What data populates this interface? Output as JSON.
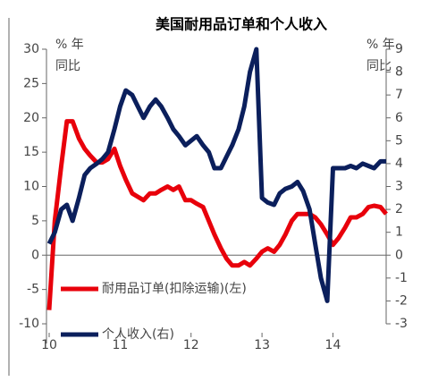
{
  "chart_data": {
    "type": "line",
    "title": "美国耐用品订单和个人收入",
    "y_unit": [
      "% 年",
      "同比"
    ],
    "y2_unit": [
      "% 年",
      "同比"
    ],
    "x": [
      10,
      10.08,
      10.17,
      10.25,
      10.33,
      10.42,
      10.5,
      10.58,
      10.67,
      10.75,
      10.83,
      10.92,
      11,
      11.08,
      11.17,
      11.25,
      11.33,
      11.42,
      11.5,
      11.58,
      11.67,
      11.75,
      11.83,
      11.92,
      12,
      12.08,
      12.17,
      12.25,
      12.33,
      12.42,
      12.5,
      12.58,
      12.67,
      12.75,
      12.83,
      12.92,
      13,
      13.08,
      13.17,
      13.25,
      13.33,
      13.42,
      13.5,
      13.58,
      13.67,
      13.75,
      13.83,
      13.92,
      14,
      14.08,
      14.17,
      14.25,
      14.33,
      14.42,
      14.5,
      14.58,
      14.67,
      14.75
    ],
    "xlim": [
      10,
      14.75
    ],
    "xticks": [
      10,
      11,
      12,
      13,
      14
    ],
    "ylim": [
      -10,
      30
    ],
    "yticks": [
      -10,
      -5,
      0,
      5,
      10,
      15,
      20,
      25,
      30
    ],
    "y2lim": [
      -3,
      9
    ],
    "y2ticks": [
      -3,
      -2,
      -1,
      0,
      1,
      2,
      3,
      4,
      5,
      6,
      7,
      8,
      9
    ],
    "legend": "lower-left",
    "series": [
      {
        "name": "耐用品订单(扣除运输)(左)",
        "color": "#e8000b",
        "values": [
          -8,
          5,
          13,
          19.5,
          19.5,
          17,
          15.5,
          14.5,
          13.5,
          13.5,
          14,
          15.5,
          13,
          11,
          9,
          8.5,
          8,
          9,
          9,
          9.5,
          10,
          9.5,
          10,
          8,
          8,
          7.5,
          7,
          5,
          3,
          1,
          -0.5,
          -1.5,
          -1.5,
          -1,
          -1.5,
          -0.5,
          0.5,
          1,
          0.5,
          1.5,
          3,
          5,
          6,
          6,
          6,
          5.5,
          4.5,
          3,
          1.5,
          2.5,
          4,
          5.5,
          5.5,
          6,
          7,
          7.2,
          7,
          6
        ]
      },
      {
        "name": "个人收入(右)",
        "color": "#0b1f5c",
        "axis": "y2",
        "values": [
          0.5,
          1,
          2,
          2.2,
          1.5,
          2.5,
          3.5,
          3.8,
          4,
          4.2,
          4.5,
          5.5,
          6.5,
          7.2,
          7,
          6.5,
          6,
          6.5,
          6.8,
          6.5,
          6,
          5.5,
          5.2,
          4.8,
          5,
          5.2,
          4.8,
          4.5,
          3.8,
          3.8,
          4.3,
          4.8,
          5.5,
          6.5,
          8,
          9,
          2.5,
          2.3,
          2.2,
          2.7,
          2.9,
          3,
          3.2,
          2.8,
          2,
          0.5,
          -1,
          -2,
          3.8,
          3.8,
          3.8,
          3.9,
          3.8,
          4,
          3.9,
          3.8,
          4.1,
          4.1
        ]
      }
    ]
  }
}
